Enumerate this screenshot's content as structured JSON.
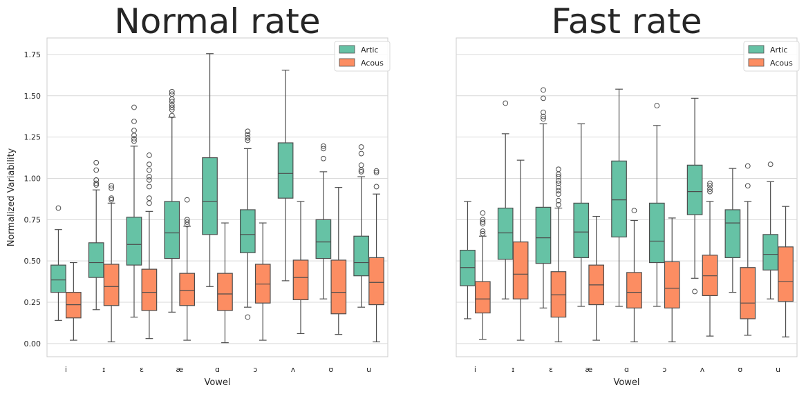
{
  "chart_data": [
    {
      "type": "box",
      "title": "Normal rate",
      "xlabel": "Vowel",
      "ylabel": "Normalized Variability",
      "ylim": [
        -0.08,
        1.85
      ],
      "yticks": [
        "0.00",
        "0.25",
        "0.50",
        "0.75",
        "1.00",
        "1.25",
        "1.50",
        "1.75"
      ],
      "grid": "horizontal",
      "legend_position": "top-right",
      "categories": [
        "i",
        "ɪ",
        "ɛ",
        "æ",
        "ɑ",
        "ɔ",
        "ʌ",
        "ʊ",
        "u"
      ],
      "series": [
        {
          "name": "Artic",
          "color": "#66c2a5",
          "boxes": [
            {
              "whislo": 0.14,
              "q1": 0.31,
              "med": 0.385,
              "q3": 0.475,
              "whishi": 0.69,
              "fliers": [
                0.82
              ]
            },
            {
              "whislo": 0.205,
              "q1": 0.4,
              "med": 0.49,
              "q3": 0.61,
              "whishi": 0.93,
              "fliers": [
                0.96,
                0.97,
                0.99,
                1.05,
                1.095
              ]
            },
            {
              "whislo": 0.16,
              "q1": 0.475,
              "med": 0.6,
              "q3": 0.765,
              "whishi": 1.195,
              "fliers": [
                1.225,
                1.24,
                1.26,
                1.29,
                1.345,
                1.43
              ]
            },
            {
              "whislo": 0.19,
              "q1": 0.515,
              "med": 0.67,
              "q3": 0.86,
              "whishi": 1.37,
              "fliers": [
                1.38,
                1.415,
                1.43,
                1.445,
                1.465,
                1.48,
                1.51,
                1.525
              ]
            },
            {
              "whislo": 0.345,
              "q1": 0.66,
              "med": 0.86,
              "q3": 1.125,
              "whishi": 1.755,
              "fliers": []
            },
            {
              "whislo": 0.22,
              "q1": 0.55,
              "med": 0.66,
              "q3": 0.81,
              "whishi": 1.18,
              "fliers": [
                0.16,
                1.23,
                1.245,
                1.265,
                1.285
              ]
            },
            {
              "whislo": 0.38,
              "q1": 0.88,
              "med": 1.03,
              "q3": 1.215,
              "whishi": 1.655,
              "fliers": []
            },
            {
              "whislo": 0.27,
              "q1": 0.515,
              "med": 0.615,
              "q3": 0.75,
              "whishi": 1.04,
              "fliers": [
                1.12,
                1.18,
                1.195
              ]
            },
            {
              "whislo": 0.22,
              "q1": 0.41,
              "med": 0.49,
              "q3": 0.65,
              "whishi": 1.01,
              "fliers": [
                1.04,
                1.05,
                1.08,
                1.15,
                1.19
              ]
            }
          ]
        },
        {
          "name": "Acous",
          "color": "#fc8d62",
          "boxes": [
            {
              "whislo": 0.02,
              "q1": 0.155,
              "med": 0.235,
              "q3": 0.31,
              "whishi": 0.49,
              "fliers": []
            },
            {
              "whislo": 0.01,
              "q1": 0.23,
              "med": 0.345,
              "q3": 0.48,
              "whishi": 0.85,
              "fliers": [
                0.87,
                0.88,
                0.94,
                0.955
              ]
            },
            {
              "whislo": 0.03,
              "q1": 0.2,
              "med": 0.31,
              "q3": 0.45,
              "whishi": 0.8,
              "fliers": [
                0.85,
                0.88,
                0.95,
                0.99,
                1.01,
                1.05,
                1.085,
                1.14
              ]
            },
            {
              "whislo": 0.02,
              "q1": 0.23,
              "med": 0.32,
              "q3": 0.425,
              "whishi": 0.71,
              "fliers": [
                0.72,
                0.735,
                0.75,
                0.87
              ]
            },
            {
              "whislo": 0.005,
              "q1": 0.2,
              "med": 0.3,
              "q3": 0.425,
              "whishi": 0.73,
              "fliers": []
            },
            {
              "whislo": 0.02,
              "q1": 0.245,
              "med": 0.36,
              "q3": 0.48,
              "whishi": 0.73,
              "fliers": []
            },
            {
              "whislo": 0.06,
              "q1": 0.265,
              "med": 0.4,
              "q3": 0.505,
              "whishi": 0.86,
              "fliers": []
            },
            {
              "whislo": 0.055,
              "q1": 0.18,
              "med": 0.31,
              "q3": 0.505,
              "whishi": 0.945,
              "fliers": []
            },
            {
              "whislo": 0.01,
              "q1": 0.235,
              "med": 0.37,
              "q3": 0.52,
              "whishi": 0.905,
              "fliers": [
                0.95,
                1.035,
                1.045
              ]
            }
          ]
        }
      ]
    },
    {
      "type": "box",
      "title": "Fast rate",
      "xlabel": "Vowel",
      "ylabel": "",
      "ylim": [
        -0.08,
        1.85
      ],
      "grid": "horizontal",
      "legend_position": "top-right",
      "categories": [
        "i",
        "ɪ",
        "ɛ",
        "æ",
        "ɑ",
        "ɔ",
        "ʌ",
        "ʊ",
        "u"
      ],
      "series": [
        {
          "name": "Artic",
          "color": "#66c2a5",
          "boxes": [
            {
              "whislo": 0.15,
              "q1": 0.35,
              "med": 0.46,
              "q3": 0.565,
              "whishi": 0.86,
              "fliers": []
            },
            {
              "whislo": 0.27,
              "q1": 0.51,
              "med": 0.67,
              "q3": 0.82,
              "whishi": 1.27,
              "fliers": [
                1.455
              ]
            },
            {
              "whislo": 0.215,
              "q1": 0.485,
              "med": 0.64,
              "q3": 0.825,
              "whishi": 1.33,
              "fliers": [
                1.36,
                1.375,
                1.4,
                1.485,
                1.535
              ]
            },
            {
              "whislo": 0.225,
              "q1": 0.52,
              "med": 0.675,
              "q3": 0.85,
              "whishi": 1.33,
              "fliers": []
            },
            {
              "whislo": 0.225,
              "q1": 0.645,
              "med": 0.87,
              "q3": 1.105,
              "whishi": 1.54,
              "fliers": []
            },
            {
              "whislo": 0.225,
              "q1": 0.49,
              "med": 0.62,
              "q3": 0.85,
              "whishi": 1.32,
              "fliers": [
                1.44
              ]
            },
            {
              "whislo": 0.395,
              "q1": 0.78,
              "med": 0.92,
              "q3": 1.08,
              "whishi": 1.485,
              "fliers": [
                0.315
              ]
            },
            {
              "whislo": 0.31,
              "q1": 0.52,
              "med": 0.73,
              "q3": 0.81,
              "whishi": 1.06,
              "fliers": []
            },
            {
              "whislo": 0.27,
              "q1": 0.445,
              "med": 0.54,
              "q3": 0.66,
              "whishi": 0.98,
              "fliers": [
                1.085
              ]
            }
          ]
        },
        {
          "name": "Acous",
          "color": "#fc8d62",
          "boxes": [
            {
              "whislo": 0.025,
              "q1": 0.185,
              "med": 0.27,
              "q3": 0.375,
              "whishi": 0.65,
              "fliers": [
                0.665,
                0.68,
                0.725,
                0.735,
                0.75,
                0.79
              ]
            },
            {
              "whislo": 0.02,
              "q1": 0.27,
              "med": 0.42,
              "q3": 0.615,
              "whishi": 1.11,
              "fliers": []
            },
            {
              "whislo": 0.01,
              "q1": 0.16,
              "med": 0.295,
              "q3": 0.435,
              "whishi": 0.82,
              "fliers": [
                0.84,
                0.865,
                0.905,
                0.925,
                0.945,
                0.97,
                0.985,
                1.01,
                1.025,
                1.055
              ]
            },
            {
              "whislo": 0.02,
              "q1": 0.235,
              "med": 0.355,
              "q3": 0.475,
              "whishi": 0.77,
              "fliers": []
            },
            {
              "whislo": 0.01,
              "q1": 0.215,
              "med": 0.31,
              "q3": 0.43,
              "whishi": 0.745,
              "fliers": [
                0.805
              ]
            },
            {
              "whislo": 0.01,
              "q1": 0.215,
              "med": 0.335,
              "q3": 0.495,
              "whishi": 0.76,
              "fliers": []
            },
            {
              "whislo": 0.045,
              "q1": 0.29,
              "med": 0.41,
              "q3": 0.535,
              "whishi": 0.86,
              "fliers": [
                0.92,
                0.935,
                0.955,
                0.97
              ]
            },
            {
              "whislo": 0.05,
              "q1": 0.15,
              "med": 0.245,
              "q3": 0.46,
              "whishi": 0.86,
              "fliers": [
                0.955,
                1.075
              ]
            },
            {
              "whislo": 0.04,
              "q1": 0.255,
              "med": 0.375,
              "q3": 0.585,
              "whishi": 0.83,
              "fliers": []
            }
          ]
        }
      ]
    }
  ]
}
